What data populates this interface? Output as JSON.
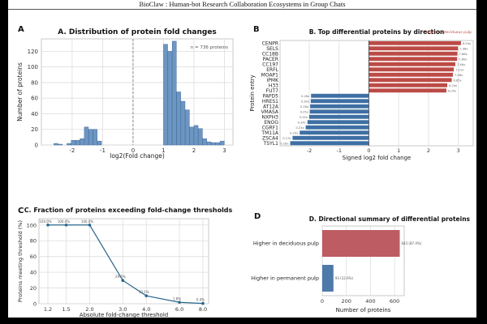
{
  "header": {
    "title": "BioClaw : Human-bot Research Collaboration Ecosystems in Group Chats"
  },
  "panels": {
    "a": {
      "letter": "A"
    },
    "b": {
      "letter": "B"
    },
    "c": {
      "letter": "C"
    },
    "d": {
      "letter": "D"
    }
  },
  "colors": {
    "hist_bar": "#6e96c2",
    "hist_bar_edge": "#426e9f",
    "up_red": "#bc4b46",
    "down_blue": "#3e6fa4",
    "summary_red": "#bd5c62",
    "summary_blue": "#4d7aa9",
    "line": "#29688b",
    "grid": "#dddddd",
    "spine": "#c8c8c8",
    "vline": "#8a8a8a",
    "tick_text": "#333333",
    "muted_text": "#555555"
  },
  "chart_data": [
    {
      "id": "A",
      "type": "bar",
      "subtype": "histogram",
      "title": "A. Distribution of protein fold changes",
      "xlabel": "log2(Fold change)",
      "ylabel": "Number of proteins",
      "annotation": "n = 736 proteins",
      "xticks": [
        -2,
        -1,
        0,
        1,
        2,
        3
      ],
      "yticks": [
        0,
        20,
        40,
        60,
        80,
        100,
        120
      ],
      "xlim": [
        -3.01,
        3.28
      ],
      "ylim": [
        0,
        136
      ],
      "bin_width": 0.143,
      "vline_x": 0,
      "bins": [
        {
          "start": -2.6,
          "count": 2
        },
        {
          "start": -2.457,
          "count": 1
        },
        {
          "start": -2.314,
          "count": 0
        },
        {
          "start": -2.171,
          "count": 2
        },
        {
          "start": -2.029,
          "count": 6
        },
        {
          "start": -1.886,
          "count": 6
        },
        {
          "start": -1.743,
          "count": 8
        },
        {
          "start": -1.6,
          "count": 23
        },
        {
          "start": -1.457,
          "count": 20
        },
        {
          "start": -1.314,
          "count": 20
        },
        {
          "start": -1.171,
          "count": 5
        },
        {
          "start": 1.0,
          "count": 129
        },
        {
          "start": 1.143,
          "count": 120
        },
        {
          "start": 1.286,
          "count": 133
        },
        {
          "start": 1.429,
          "count": 68
        },
        {
          "start": 1.571,
          "count": 56
        },
        {
          "start": 1.714,
          "count": 45
        },
        {
          "start": 1.857,
          "count": 23
        },
        {
          "start": 2.0,
          "count": 25
        },
        {
          "start": 2.143,
          "count": 21
        },
        {
          "start": 2.286,
          "count": 8
        },
        {
          "start": 2.429,
          "count": 4
        },
        {
          "start": 2.571,
          "count": 3
        },
        {
          "start": 2.714,
          "count": 3
        },
        {
          "start": 2.857,
          "count": 5
        }
      ]
    },
    {
      "id": "B",
      "type": "bar",
      "orientation": "horizontal",
      "title": "B. Top differential proteins by direction",
      "xlabel": "Signed log2 fold change",
      "ylabel": "Protein entry",
      "legend_note": "Higher in deciduous pulp",
      "xticks": [
        -2,
        -1,
        0,
        1,
        2,
        3
      ],
      "xlim": [
        -2.98,
        3.5
      ],
      "bars": [
        {
          "name": "CENPR",
          "log2fc": 3.09,
          "label": "8.54x",
          "direction": "up"
        },
        {
          "name": "SELS",
          "log2fc": 2.99,
          "label": "7.96x",
          "direction": "up"
        },
        {
          "name": "CC18B",
          "log2fc": 2.97,
          "label": "7.86x",
          "direction": "up"
        },
        {
          "name": "PACER",
          "log2fc": 2.96,
          "label": "7.80x",
          "direction": "up"
        },
        {
          "name": "CC197",
          "log2fc": 2.9,
          "label": "7.46x",
          "direction": "up"
        },
        {
          "name": "ERFL",
          "log2fc": 2.85,
          "label": "7.21x",
          "direction": "up"
        },
        {
          "name": "MOAP1",
          "log2fc": 2.82,
          "label": "7.08x",
          "direction": "up"
        },
        {
          "name": "IPMK",
          "log2fc": 2.78,
          "label": "6.85x",
          "direction": "up"
        },
        {
          "name": "H33",
          "log2fc": 2.63,
          "label": "6.20x",
          "direction": "up"
        },
        {
          "name": "FUT7",
          "log2fc": 2.6,
          "label": "6.05x",
          "direction": "up"
        },
        {
          "name": "PAPD5",
          "log2fc": -1.94,
          "label": "0.26x",
          "direction": "down"
        },
        {
          "name": "HRES1",
          "log2fc": -1.95,
          "label": "0.26x",
          "direction": "down"
        },
        {
          "name": "AT12A",
          "log2fc": -1.97,
          "label": "0.26x",
          "direction": "down"
        },
        {
          "name": "VMASA",
          "log2fc": -1.98,
          "label": "0.25x",
          "direction": "down"
        },
        {
          "name": "NXPH3",
          "log2fc": -2.0,
          "label": "0.25x",
          "direction": "down"
        },
        {
          "name": "ENOG",
          "log2fc": -2.06,
          "label": "0.24x",
          "direction": "down"
        },
        {
          "name": "CGRF1",
          "log2fc": -2.12,
          "label": "0.23x",
          "direction": "down"
        },
        {
          "name": "TM11A",
          "log2fc": -2.32,
          "label": "0.20x",
          "direction": "down"
        },
        {
          "name": "ZSCA4",
          "log2fc": -2.56,
          "label": "0.17x",
          "direction": "down"
        },
        {
          "name": "TSYL1",
          "log2fc": -2.64,
          "label": "0.16x",
          "direction": "down"
        }
      ]
    },
    {
      "id": "C",
      "type": "line",
      "title": "C. Fraction of proteins exceeding fold-change thresholds",
      "xlabel": "Absolute fold-change threshold",
      "ylabel": "Proteins meeting threshold (%)",
      "xscale": "log2",
      "x": [
        1.2,
        1.5,
        2.0,
        3.0,
        4.0,
        6.0,
        8.0
      ],
      "y": [
        100.0,
        100.0,
        100.0,
        29.6,
        10.1,
        1.8,
        0.4
      ],
      "point_labels": [
        "100.0%",
        "100.0%",
        "100.0%",
        "29.6%",
        "10.1%",
        "1.8%",
        "0.4%"
      ],
      "xtick_labels": [
        "1.2",
        "1.5",
        "2.0",
        "3.0",
        "4.0",
        "6.0",
        "8.0"
      ],
      "yticks": [
        0,
        20,
        40,
        60,
        80,
        100
      ],
      "ylim": [
        0,
        108
      ],
      "xlim_log2": [
        0.105,
        3.1
      ]
    },
    {
      "id": "D",
      "type": "bar",
      "orientation": "horizontal",
      "title": "D. Directional summary of differential proteins",
      "xlabel": "Number of proteins",
      "categories": [
        "Higher in deciduous pulp",
        "Higher in permanent pulp"
      ],
      "values": [
        643,
        93
      ],
      "bar_labels": [
        "643 (87.4%)",
        "93 (12.6%)"
      ],
      "xticks": [
        0,
        200,
        400,
        600
      ],
      "xlim": [
        0,
        680
      ]
    }
  ]
}
